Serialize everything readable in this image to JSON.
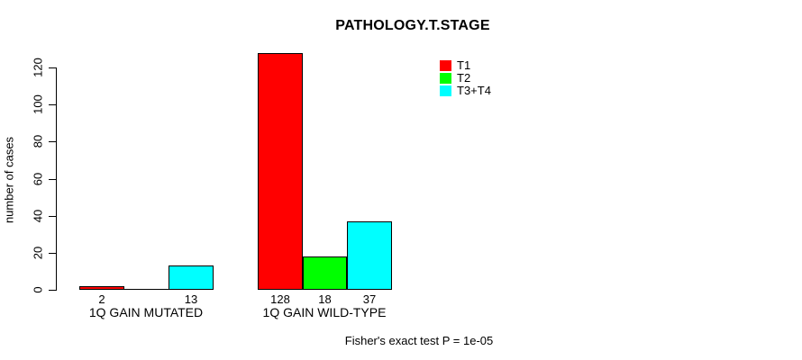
{
  "chart_data": {
    "type": "bar",
    "title": "PATHOLOGY.T.STAGE",
    "ylabel": "number of cases",
    "ylim": [
      0,
      130
    ],
    "axis_max": 120,
    "yticks": [
      0,
      20,
      40,
      60,
      80,
      100,
      120
    ],
    "categories": [
      "1Q GAIN MUTATED",
      "1Q GAIN WILD-TYPE"
    ],
    "series": [
      {
        "name": "T1",
        "color": "#ff0000",
        "values": [
          2,
          128
        ]
      },
      {
        "name": "T2",
        "color": "#00ff00",
        "values": [
          0,
          18
        ]
      },
      {
        "name": "T3+T4",
        "color": "#00ffff",
        "values": [
          13,
          37
        ]
      }
    ],
    "bar_value_labels": [
      [
        "2",
        "",
        "13"
      ],
      [
        "128",
        "18",
        "37"
      ]
    ],
    "legend_position": "top-right",
    "grid": false,
    "annotation": "Fisher's exact test P = 1e-05",
    "bar_border_color": "#000000",
    "axis_color": "#000000",
    "text_color": "#000000",
    "background_color": "#ffffff"
  }
}
